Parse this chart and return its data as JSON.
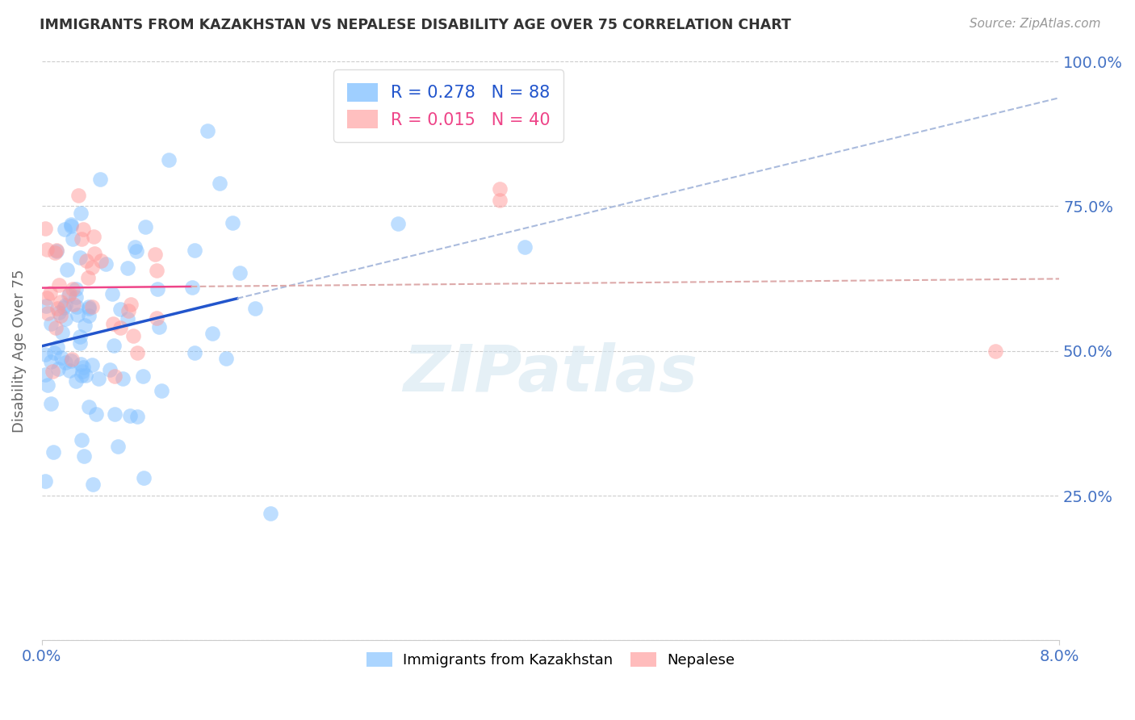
{
  "title": "IMMIGRANTS FROM KAZAKHSTAN VS NEPALESE DISABILITY AGE OVER 75 CORRELATION CHART",
  "source": "Source: ZipAtlas.com",
  "ylabel": "Disability Age Over 75",
  "xmin": 0.0,
  "xmax": 0.08,
  "ymin": 0.0,
  "ymax": 1.0,
  "ytick_vals": [
    0.0,
    0.25,
    0.5,
    0.75,
    1.0
  ],
  "legend_entry1_color": "#7fbfff",
  "legend_entry2_color": "#ffaaaa",
  "legend_label1": "Immigrants from Kazakhstan",
  "legend_label2": "Nepalese",
  "R1": 0.278,
  "N1": 88,
  "R2": 0.015,
  "N2": 40,
  "scatter_color1": "#7fbfff",
  "scatter_color2": "#ff9999",
  "trendline1_color": "#2255cc",
  "trendline2_color": "#ee4488",
  "trendline1_dashed_color": "#aabbdd",
  "trendline2_dashed_color": "#ddaaaa",
  "watermark": "ZIPatlas",
  "watermark_color": "#d0e4f0",
  "background_color": "#ffffff",
  "grid_color": "#cccccc",
  "axis_color": "#4472c4"
}
